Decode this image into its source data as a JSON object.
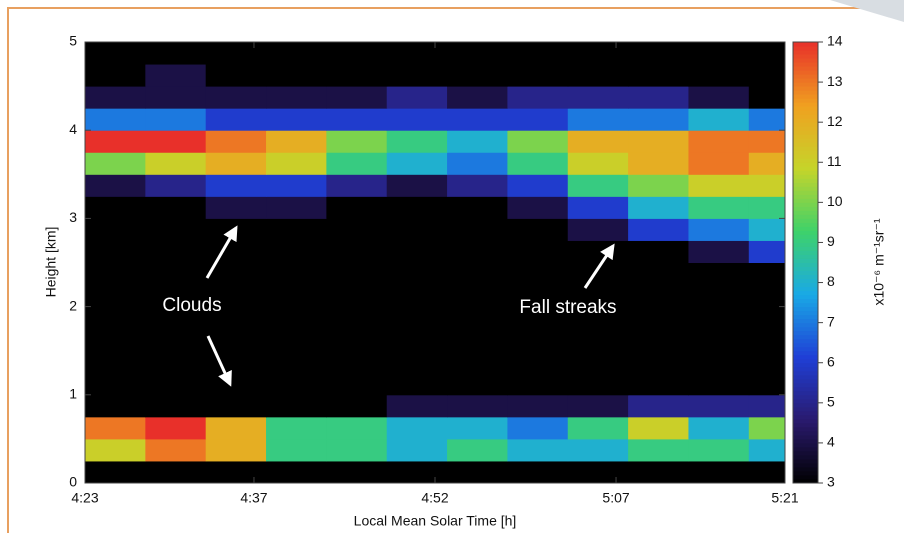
{
  "chart_data": {
    "type": "heatmap",
    "xlabel": "Local Mean Solar Time [h]",
    "ylabel": "Height [km]",
    "colorbar_label": "x10⁻⁶ m⁻¹sr⁻¹",
    "annotations": [
      "Clouds",
      "Fall streaks"
    ],
    "xlim": [
      263,
      321
    ],
    "xticks": [
      {
        "value": 263,
        "label": "4:23"
      },
      {
        "value": 277,
        "label": "4:37"
      },
      {
        "value": 292,
        "label": "4:52"
      },
      {
        "value": 307,
        "label": "5:07"
      },
      {
        "value": 321,
        "label": "5:21"
      }
    ],
    "ylim": [
      0,
      5
    ],
    "yticks": [
      0,
      1,
      2,
      3,
      4,
      5
    ],
    "zlim": [
      3,
      14
    ],
    "zticks": [
      3,
      4,
      5,
      6,
      7,
      8,
      9,
      10,
      11,
      12,
      13,
      14
    ],
    "colorscale": [
      "#000000",
      "#2a1a6e",
      "#1f3fd6",
      "#19a9e6",
      "#3ed26a",
      "#c6d42a",
      "#f0a020",
      "#e8302a"
    ],
    "x": [
      265.5,
      270.5,
      275.5,
      280.5,
      285.5,
      290.5,
      295.5,
      300.5,
      305.5,
      310.5,
      315.5,
      320.5
    ],
    "y": [
      0.125,
      0.375,
      0.625,
      0.875,
      1.125,
      1.375,
      1.625,
      1.875,
      2.125,
      2.375,
      2.625,
      2.875,
      3.125,
      3.375,
      3.625,
      3.875,
      4.125,
      4.375,
      4.625,
      4.875
    ],
    "z": [
      [
        3,
        3,
        3,
        3,
        3,
        3,
        3,
        3,
        3,
        3,
        3,
        3
      ],
      [
        11,
        13,
        12,
        9,
        9,
        8,
        9,
        8,
        8,
        9,
        9,
        8
      ],
      [
        13,
        14,
        12,
        9,
        9,
        8,
        8,
        7,
        9,
        11,
        8,
        10
      ],
      [
        3,
        3,
        3,
        3,
        3,
        4,
        4,
        4,
        4,
        5,
        5,
        5
      ],
      [
        3,
        3,
        3,
        3,
        3,
        3,
        3,
        3,
        3,
        3,
        3,
        3
      ],
      [
        3,
        3,
        3,
        3,
        3,
        3,
        3,
        3,
        3,
        3,
        3,
        3
      ],
      [
        3,
        3,
        3,
        3,
        3,
        3,
        3,
        3,
        3,
        3,
        3,
        3
      ],
      [
        3,
        3,
        3,
        3,
        3,
        3,
        3,
        3,
        3,
        3,
        3,
        3
      ],
      [
        3,
        3,
        3,
        3,
        3,
        3,
        3,
        3,
        3,
        3,
        3,
        3
      ],
      [
        3,
        3,
        3,
        3,
        3,
        3,
        3,
        3,
        3,
        3,
        3,
        3
      ],
      [
        3,
        3,
        3,
        3,
        3,
        3,
        3,
        3,
        3,
        3,
        4,
        6
      ],
      [
        3,
        3,
        3,
        3,
        3,
        3,
        3,
        3,
        4,
        6,
        7,
        8
      ],
      [
        3,
        3,
        4,
        4,
        3,
        3,
        3,
        4,
        6,
        8,
        9,
        9
      ],
      [
        4,
        5,
        6,
        6,
        5,
        4,
        5,
        6,
        9,
        10,
        11,
        11
      ],
      [
        10,
        11,
        12,
        11,
        9,
        8,
        7,
        9,
        11,
        12,
        13,
        12
      ],
      [
        14,
        14,
        13,
        12,
        10,
        9,
        8,
        10,
        12,
        12,
        13,
        13
      ],
      [
        7,
        7,
        6,
        6,
        6,
        6,
        6,
        6,
        7,
        7,
        8,
        7
      ],
      [
        4,
        4,
        4,
        4,
        4,
        5,
        4,
        5,
        5,
        5,
        4,
        3
      ],
      [
        3,
        4,
        3,
        3,
        3,
        3,
        3,
        3,
        3,
        3,
        3,
        3
      ],
      [
        3,
        3,
        3,
        3,
        3,
        3,
        3,
        3,
        3,
        3,
        3,
        3
      ]
    ]
  }
}
